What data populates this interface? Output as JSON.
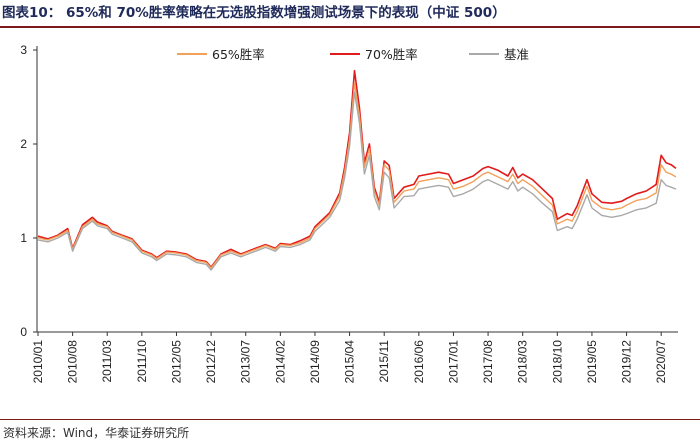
{
  "header": {
    "title": "图表10：  65%和 70%胜率策略在无选股指数增强测试场景下的表现（中证 500）"
  },
  "footer": {
    "source": "资料来源：Wind，华泰证券研究所"
  },
  "colors": {
    "series_65": "#f2a05a",
    "series_70": "#e11b1b",
    "series_base": "#a9a9a9",
    "rule": "#7a1a1a"
  },
  "chart_data": {
    "type": "line",
    "title": "",
    "xlabel": "",
    "ylabel": "",
    "ylim": [
      0,
      3
    ],
    "yticks": [
      0,
      1,
      2,
      3
    ],
    "grid": false,
    "legend_position": "top-right",
    "xtick_labels": [
      "2010/01",
      "2010/08",
      "2011/03",
      "2011/10",
      "2012/05",
      "2012/12",
      "2013/07",
      "2014/02",
      "2014/09",
      "2015/04",
      "2015/11",
      "2016/06",
      "2017/01",
      "2017/08",
      "2018/03",
      "2018/10",
      "2019/05",
      "2019/12",
      "2020/07"
    ],
    "x": [
      "2010/01",
      "2010/03",
      "2010/05",
      "2010/07",
      "2010/08",
      "2010/10",
      "2010/12",
      "2011/01",
      "2011/03",
      "2011/04",
      "2011/06",
      "2011/08",
      "2011/10",
      "2011/12",
      "2012/01",
      "2012/03",
      "2012/05",
      "2012/07",
      "2012/09",
      "2012/11",
      "2012/12",
      "2013/02",
      "2013/04",
      "2013/06",
      "2013/07",
      "2013/09",
      "2013/11",
      "2014/01",
      "2014/02",
      "2014/04",
      "2014/06",
      "2014/08",
      "2014/09",
      "2014/11",
      "2014/12",
      "2015/02",
      "2015/03",
      "2015/04",
      "2015/05",
      "2015/06",
      "2015/07",
      "2015/08",
      "2015/09",
      "2015/10",
      "2015/11",
      "2015/12",
      "2016/01",
      "2016/03",
      "2016/05",
      "2016/06",
      "2016/08",
      "2016/10",
      "2016/12",
      "2017/01",
      "2017/03",
      "2017/05",
      "2017/07",
      "2017/08",
      "2017/10",
      "2017/12",
      "2018/01",
      "2018/02",
      "2018/03",
      "2018/05",
      "2018/07",
      "2018/09",
      "2018/10",
      "2018/12",
      "2019/01",
      "2019/02",
      "2019/04",
      "2019/05",
      "2019/07",
      "2019/09",
      "2019/11",
      "2019/12",
      "2020/02",
      "2020/04",
      "2020/06",
      "2020/07",
      "2020/08",
      "2020/09",
      "2020/10"
    ],
    "series": [
      {
        "name": "65%胜率",
        "color_key": "series_65",
        "values": [
          1.0,
          0.98,
          1.02,
          1.08,
          0.88,
          1.12,
          1.2,
          1.15,
          1.12,
          1.06,
          1.02,
          0.98,
          0.86,
          0.82,
          0.78,
          0.85,
          0.84,
          0.82,
          0.76,
          0.74,
          0.68,
          0.82,
          0.86,
          0.82,
          0.84,
          0.88,
          0.92,
          0.88,
          0.93,
          0.92,
          0.95,
          1.0,
          1.1,
          1.2,
          1.25,
          1.45,
          1.7,
          2.05,
          2.65,
          2.3,
          1.75,
          1.95,
          1.5,
          1.35,
          1.78,
          1.72,
          1.38,
          1.5,
          1.52,
          1.6,
          1.62,
          1.64,
          1.62,
          1.52,
          1.55,
          1.6,
          1.68,
          1.7,
          1.65,
          1.6,
          1.68,
          1.58,
          1.62,
          1.55,
          1.45,
          1.35,
          1.15,
          1.2,
          1.18,
          1.28,
          1.55,
          1.4,
          1.32,
          1.3,
          1.32,
          1.35,
          1.4,
          1.42,
          1.48,
          1.78,
          1.7,
          1.68,
          1.65
        ]
      },
      {
        "name": "70%胜率",
        "color_key": "series_70",
        "values": [
          1.02,
          0.99,
          1.03,
          1.1,
          0.89,
          1.14,
          1.22,
          1.17,
          1.13,
          1.07,
          1.03,
          0.99,
          0.87,
          0.83,
          0.79,
          0.86,
          0.85,
          0.83,
          0.77,
          0.75,
          0.69,
          0.83,
          0.88,
          0.83,
          0.85,
          0.89,
          0.93,
          0.89,
          0.94,
          0.93,
          0.97,
          1.02,
          1.12,
          1.22,
          1.27,
          1.48,
          1.75,
          2.12,
          2.78,
          2.38,
          1.8,
          2.0,
          1.54,
          1.38,
          1.82,
          1.77,
          1.42,
          1.54,
          1.57,
          1.66,
          1.68,
          1.7,
          1.68,
          1.58,
          1.62,
          1.66,
          1.74,
          1.76,
          1.72,
          1.66,
          1.75,
          1.64,
          1.68,
          1.62,
          1.52,
          1.42,
          1.2,
          1.26,
          1.24,
          1.34,
          1.62,
          1.47,
          1.38,
          1.37,
          1.39,
          1.42,
          1.47,
          1.5,
          1.57,
          1.88,
          1.8,
          1.78,
          1.74
        ]
      },
      {
        "name": "基准",
        "color_key": "series_base",
        "values": [
          0.98,
          0.96,
          1.0,
          1.06,
          0.86,
          1.1,
          1.18,
          1.13,
          1.1,
          1.04,
          1.0,
          0.96,
          0.84,
          0.8,
          0.76,
          0.83,
          0.82,
          0.8,
          0.74,
          0.72,
          0.66,
          0.8,
          0.84,
          0.8,
          0.82,
          0.86,
          0.9,
          0.86,
          0.91,
          0.9,
          0.93,
          0.98,
          1.07,
          1.17,
          1.22,
          1.4,
          1.64,
          1.98,
          2.55,
          2.22,
          1.68,
          1.88,
          1.44,
          1.3,
          1.7,
          1.64,
          1.32,
          1.44,
          1.45,
          1.52,
          1.54,
          1.56,
          1.54,
          1.44,
          1.47,
          1.52,
          1.6,
          1.62,
          1.57,
          1.52,
          1.6,
          1.5,
          1.54,
          1.47,
          1.37,
          1.28,
          1.08,
          1.12,
          1.1,
          1.2,
          1.46,
          1.32,
          1.24,
          1.22,
          1.24,
          1.26,
          1.3,
          1.32,
          1.37,
          1.62,
          1.56,
          1.54,
          1.52
        ]
      }
    ]
  }
}
